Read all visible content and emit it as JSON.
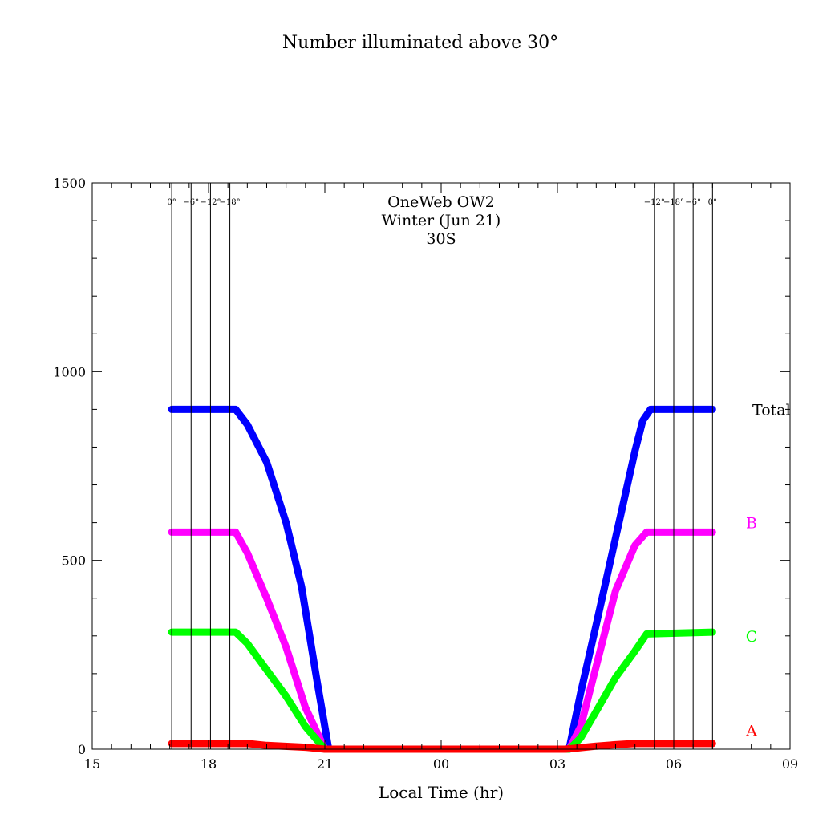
{
  "chart_data": {
    "type": "line",
    "title": "Number illuminated above 30°",
    "annotations": [
      "OneWeb OW2",
      "Winter (Jun 21)",
      "30S"
    ],
    "xlabel": "Local Time (hr)",
    "ylabel": "",
    "xlim": [
      15,
      33
    ],
    "ylim": [
      0,
      1500
    ],
    "x_ticks": [
      {
        "value": 15,
        "label": "15"
      },
      {
        "value": 18,
        "label": "18"
      },
      {
        "value": 21,
        "label": "21"
      },
      {
        "value": 24,
        "label": "00"
      },
      {
        "value": 27,
        "label": "03"
      },
      {
        "value": 30,
        "label": "06"
      },
      {
        "value": 33,
        "label": "09"
      }
    ],
    "y_ticks": [
      {
        "value": 0,
        "label": "0"
      },
      {
        "value": 500,
        "label": "500"
      },
      {
        "value": 1000,
        "label": "1000"
      },
      {
        "value": 1500,
        "label": "1500"
      }
    ],
    "twilight_markers": [
      {
        "x": 17.05,
        "label": "0°"
      },
      {
        "x": 17.55,
        "label": "−6°"
      },
      {
        "x": 18.05,
        "label": "−12°"
      },
      {
        "x": 18.55,
        "label": "−18°"
      },
      {
        "x": 30.0,
        "label": "−18°"
      },
      {
        "x": 29.5,
        "label": "−12°"
      },
      {
        "x": 30.5,
        "label": "−6°"
      },
      {
        "x": 31.0,
        "label": "0°"
      }
    ],
    "series": [
      {
        "name": "Total",
        "color": "#0000ff",
        "label_value": 900,
        "points": [
          [
            17.05,
            900
          ],
          [
            18.7,
            900
          ],
          [
            19.0,
            860
          ],
          [
            19.5,
            760
          ],
          [
            20.0,
            600
          ],
          [
            20.4,
            430
          ],
          [
            20.8,
            180
          ],
          [
            21.1,
            0
          ],
          [
            27.3,
            0
          ],
          [
            27.6,
            150
          ],
          [
            28.0,
            330
          ],
          [
            28.5,
            560
          ],
          [
            29.0,
            790
          ],
          [
            29.2,
            870
          ],
          [
            29.4,
            900
          ],
          [
            31.0,
            900
          ]
        ]
      },
      {
        "name": "B",
        "color": "#ff00ff",
        "label_value": 600,
        "points": [
          [
            17.05,
            575
          ],
          [
            18.7,
            575
          ],
          [
            19.0,
            520
          ],
          [
            19.5,
            400
          ],
          [
            20.0,
            270
          ],
          [
            20.5,
            110
          ],
          [
            21.0,
            0
          ],
          [
            27.3,
            0
          ],
          [
            27.6,
            60
          ],
          [
            28.0,
            220
          ],
          [
            28.5,
            420
          ],
          [
            29.0,
            540
          ],
          [
            29.3,
            575
          ],
          [
            31.0,
            575
          ]
        ]
      },
      {
        "name": "C",
        "color": "#00ff00",
        "label_value": 300,
        "points": [
          [
            17.05,
            310
          ],
          [
            18.7,
            310
          ],
          [
            19.0,
            280
          ],
          [
            19.5,
            210
          ],
          [
            20.0,
            140
          ],
          [
            20.5,
            60
          ],
          [
            21.0,
            0
          ],
          [
            27.3,
            0
          ],
          [
            27.6,
            30
          ],
          [
            28.0,
            100
          ],
          [
            28.5,
            190
          ],
          [
            29.0,
            260
          ],
          [
            29.3,
            305
          ],
          [
            31.0,
            310
          ]
        ]
      },
      {
        "name": "A",
        "color": "#ff0000",
        "label_value": 50,
        "points": [
          [
            17.05,
            15
          ],
          [
            19.0,
            15
          ],
          [
            19.5,
            10
          ],
          [
            20.5,
            5
          ],
          [
            21.0,
            0
          ],
          [
            27.2,
            0
          ],
          [
            27.5,
            3
          ],
          [
            28.0,
            8
          ],
          [
            28.5,
            12
          ],
          [
            29.0,
            15
          ],
          [
            31.0,
            15
          ]
        ]
      }
    ]
  }
}
